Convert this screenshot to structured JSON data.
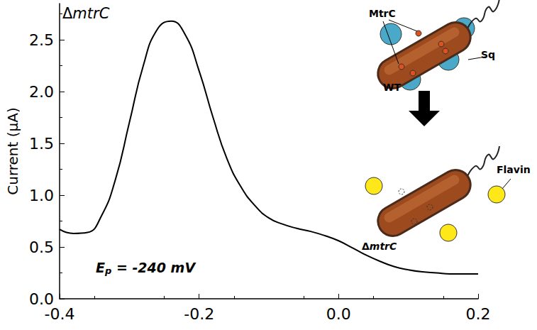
{
  "chart_data": {
    "type": "line",
    "y_label": "Current (μA)",
    "x": [
      -0.4,
      -0.38,
      -0.36,
      -0.34,
      -0.32,
      -0.3,
      -0.28,
      -0.26,
      -0.24,
      -0.22,
      -0.2,
      -0.18,
      -0.16,
      -0.14,
      -0.12,
      -0.1,
      -0.08,
      -0.06,
      -0.04,
      -0.02,
      0.0,
      0.02,
      0.04,
      0.06,
      0.08,
      0.1,
      0.12,
      0.14,
      0.16,
      0.18,
      0.2
    ],
    "values": [
      0.67,
      0.63,
      0.64,
      0.8,
      1.15,
      1.7,
      2.25,
      2.6,
      2.68,
      2.55,
      2.2,
      1.75,
      1.35,
      1.08,
      0.9,
      0.78,
      0.72,
      0.68,
      0.65,
      0.61,
      0.56,
      0.49,
      0.42,
      0.36,
      0.31,
      0.28,
      0.26,
      0.25,
      0.24,
      0.24,
      0.24
    ],
    "color": "#000000",
    "xlim": [
      -0.4,
      0.2
    ],
    "xticks": [
      -0.4,
      -0.2,
      {
        "value": 0,
        "label": "0.0"
      },
      0.2
    ],
    "ylim": [
      0,
      2.85
    ],
    "yticks": [
      {
        "value": 0,
        "label": "0.0"
      },
      0.5,
      {
        "value": 1,
        "label": "1.0"
      },
      1.5,
      {
        "value": 2,
        "label": "2.0"
      },
      2.5
    ],
    "grid": false,
    "strain_label": {
      "prefix": "Δ",
      "italic": "mtrC"
    },
    "peak_annotation": {
      "base": "E",
      "subscript": "p",
      "text": " = -240 mV"
    },
    "inset_labels": {
      "mtrc": "MtrC",
      "sq": "Sq",
      "wt": "WT",
      "flavin": "Flavin",
      "mutant": {
        "prefix": "Δ",
        "italic": "mtrC"
      }
    }
  }
}
